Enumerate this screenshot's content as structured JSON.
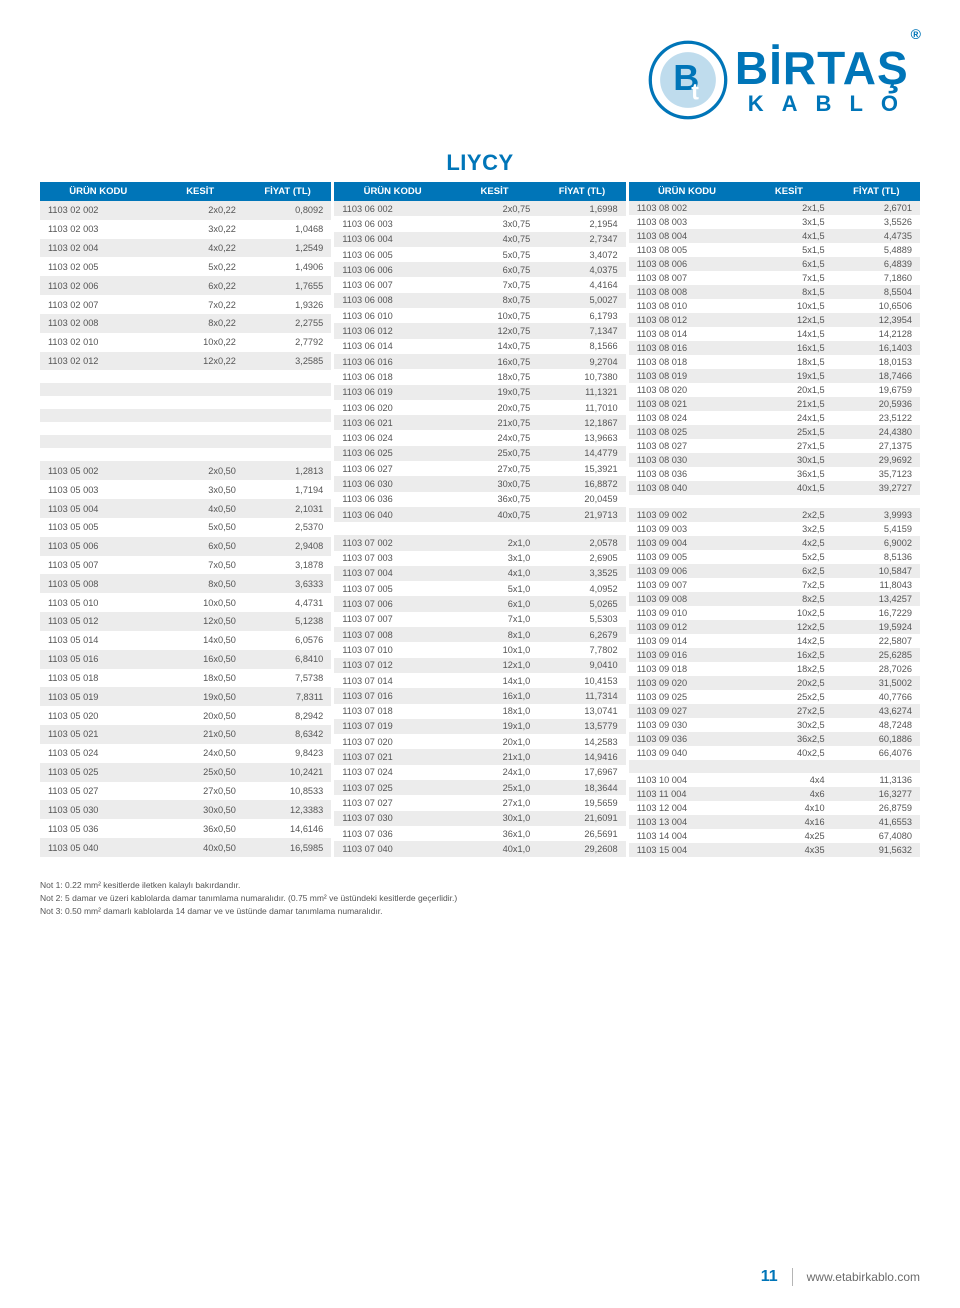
{
  "brand": {
    "name": "BİRTAŞ",
    "sub": "KABLO",
    "registered": "®"
  },
  "title": "LIYCY",
  "colors": {
    "brand_blue": "#0075b8",
    "header_bg": "#0075b8",
    "header_text": "#ffffff",
    "row_alt_bg": "#ececec",
    "row_bg": "#ffffff",
    "text": "#555555",
    "page_bg": "#ffffff"
  },
  "fonts": {
    "base_size": 9.2,
    "title_size": 22,
    "header_size": 9.5
  },
  "headers": {
    "code": "ÜRÜN KODU",
    "section": "KESİT",
    "price": "FİYAT (TL)"
  },
  "footer": {
    "page": "11",
    "url": "www.etabirkablo.com"
  },
  "notes": [
    "Not 1: 0.22 mm² kesitlerde iletken kalaylı bakırdandır.",
    "Not 2: 5 damar ve üzeri kablolarda damar tanımlama numaralıdır. (0.75 mm² ve üstündeki kesitlerde geçerlidir.)",
    "Not 3: 0.50 mm² damarlı kablolarda 14 damar ve ve üstünde damar tanımlama numaralıdır."
  ],
  "tables": [
    {
      "rows": [
        {
          "c": "1103 02 002",
          "k": "2x0,22",
          "p": "0,8092"
        },
        {
          "c": "1103 02 003",
          "k": "3x0,22",
          "p": "1,0468"
        },
        {
          "c": "1103 02 004",
          "k": "4x0,22",
          "p": "1,2549"
        },
        {
          "c": "1103 02 005",
          "k": "5x0,22",
          "p": "1,4906"
        },
        {
          "c": "1103 02 006",
          "k": "6x0,22",
          "p": "1,7655"
        },
        {
          "c": "1103 02 007",
          "k": "7x0,22",
          "p": "1,9326"
        },
        {
          "c": "1103 02 008",
          "k": "8x0,22",
          "p": "2,2755"
        },
        {
          "c": "1103 02 010",
          "k": "10x0,22",
          "p": "2,7792"
        },
        {
          "c": "1103 02 012",
          "k": "12x0,22",
          "p": "3,2585"
        },
        {
          "empty": true
        },
        {
          "empty": true
        },
        {
          "empty": true
        },
        {
          "empty": true
        },
        {
          "empty": true
        },
        {
          "empty": true
        },
        {
          "empty": true
        },
        {
          "c": "1103 05 002",
          "k": "2x0,50",
          "p": "1,2813"
        },
        {
          "c": "1103 05 003",
          "k": "3x0,50",
          "p": "1,7194"
        },
        {
          "c": "1103 05 004",
          "k": "4x0,50",
          "p": "2,1031"
        },
        {
          "c": "1103 05 005",
          "k": "5x0,50",
          "p": "2,5370"
        },
        {
          "c": "1103 05 006",
          "k": "6x0,50",
          "p": "2,9408"
        },
        {
          "c": "1103 05 007",
          "k": "7x0,50",
          "p": "3,1878"
        },
        {
          "c": "1103 05 008",
          "k": "8x0,50",
          "p": "3,6333"
        },
        {
          "c": "1103 05 010",
          "k": "10x0,50",
          "p": "4,4731"
        },
        {
          "c": "1103 05 012",
          "k": "12x0,50",
          "p": "5,1238"
        },
        {
          "c": "1103 05 014",
          "k": "14x0,50",
          "p": "6,0576"
        },
        {
          "c": "1103 05 016",
          "k": "16x0,50",
          "p": "6,8410"
        },
        {
          "c": "1103 05 018",
          "k": "18x0,50",
          "p": "7,5738"
        },
        {
          "c": "1103 05 019",
          "k": "19x0,50",
          "p": "7,8311"
        },
        {
          "c": "1103 05 020",
          "k": "20x0,50",
          "p": "8,2942"
        },
        {
          "c": "1103 05 021",
          "k": "21x0,50",
          "p": "8,6342"
        },
        {
          "c": "1103 05 024",
          "k": "24x0,50",
          "p": "9,8423"
        },
        {
          "c": "1103 05 025",
          "k": "25x0,50",
          "p": "10,2421"
        },
        {
          "c": "1103 05 027",
          "k": "27x0,50",
          "p": "10,8533"
        },
        {
          "c": "1103 05 030",
          "k": "30x0,50",
          "p": "12,3383"
        },
        {
          "c": "1103 05 036",
          "k": "36x0,50",
          "p": "14,6146"
        },
        {
          "c": "1103 05 040",
          "k": "40x0,50",
          "p": "16,5985"
        }
      ]
    },
    {
      "rows": [
        {
          "c": "1103 06 002",
          "k": "2x0,75",
          "p": "1,6998"
        },
        {
          "c": "1103 06 003",
          "k": "3x0,75",
          "p": "2,1954"
        },
        {
          "c": "1103 06 004",
          "k": "4x0,75",
          "p": "2,7347"
        },
        {
          "c": "1103 06 005",
          "k": "5x0,75",
          "p": "3,4072"
        },
        {
          "c": "1103 06 006",
          "k": "6x0,75",
          "p": "4,0375"
        },
        {
          "c": "1103 06 007",
          "k": "7x0,75",
          "p": "4,4164"
        },
        {
          "c": "1103 06 008",
          "k": "8x0,75",
          "p": "5,0027"
        },
        {
          "c": "1103 06 010",
          "k": "10x0,75",
          "p": "6,1793"
        },
        {
          "c": "1103 06 012",
          "k": "12x0,75",
          "p": "7,1347"
        },
        {
          "c": "1103 06 014",
          "k": "14x0,75",
          "p": "8,1566"
        },
        {
          "c": "1103 06 016",
          "k": "16x0,75",
          "p": "9,2704"
        },
        {
          "c": "1103 06 018",
          "k": "18x0,75",
          "p": "10,7380"
        },
        {
          "c": "1103 06 019",
          "k": "19x0,75",
          "p": "11,1321"
        },
        {
          "c": "1103 06 020",
          "k": "20x0,75",
          "p": "11,7010"
        },
        {
          "c": "1103 06 021",
          "k": "21x0,75",
          "p": "12,1867"
        },
        {
          "c": "1103 06 024",
          "k": "24x0,75",
          "p": "13,9663"
        },
        {
          "c": "1103 06 025",
          "k": "25x0,75",
          "p": "14,4779"
        },
        {
          "c": "1103 06 027",
          "k": "27x0,75",
          "p": "15,3921"
        },
        {
          "c": "1103 06 030",
          "k": "30x0,75",
          "p": "16,8872"
        },
        {
          "c": "1103 06 036",
          "k": "36x0,75",
          "p": "20,0459"
        },
        {
          "c": "1103 06 040",
          "k": "40x0,75",
          "p": "21,9713"
        },
        {
          "empty": true
        },
        {
          "c": "1103 07 002",
          "k": "2x1,0",
          "p": "2,0578"
        },
        {
          "c": "1103 07 003",
          "k": "3x1,0",
          "p": "2,6905"
        },
        {
          "c": "1103 07 004",
          "k": "4x1,0",
          "p": "3,3525"
        },
        {
          "c": "1103 07 005",
          "k": "5x1,0",
          "p": "4,0952"
        },
        {
          "c": "1103 07 006",
          "k": "6x1,0",
          "p": "5,0265"
        },
        {
          "c": "1103 07 007",
          "k": "7x1,0",
          "p": "5,5303"
        },
        {
          "c": "1103 07 008",
          "k": "8x1,0",
          "p": "6,2679"
        },
        {
          "c": "1103 07 010",
          "k": "10x1,0",
          "p": "7,7802"
        },
        {
          "c": "1103 07 012",
          "k": "12x1,0",
          "p": "9,0410"
        },
        {
          "c": "1103 07 014",
          "k": "14x1,0",
          "p": "10,4153"
        },
        {
          "c": "1103 07 016",
          "k": "16x1,0",
          "p": "11,7314"
        },
        {
          "c": "1103 07 018",
          "k": "18x1,0",
          "p": "13,0741"
        },
        {
          "c": "1103 07 019",
          "k": "19x1,0",
          "p": "13,5779"
        },
        {
          "c": "1103 07 020",
          "k": "20x1,0",
          "p": "14,2583"
        },
        {
          "c": "1103 07 021",
          "k": "21x1,0",
          "p": "14,9416"
        },
        {
          "c": "1103 07 024",
          "k": "24x1,0",
          "p": "17,6967"
        },
        {
          "c": "1103 07 025",
          "k": "25x1,0",
          "p": "18,3644"
        },
        {
          "c": "1103 07 027",
          "k": "27x1,0",
          "p": "19,5659"
        },
        {
          "c": "1103 07 030",
          "k": "30x1,0",
          "p": "21,6091"
        },
        {
          "c": "1103 07 036",
          "k": "36x1,0",
          "p": "26,5691"
        },
        {
          "c": "1103 07 040",
          "k": "40x1,0",
          "p": "29,2608"
        }
      ]
    },
    {
      "rows": [
        {
          "c": "1103 08 002",
          "k": "2x1,5",
          "p": "2,6701"
        },
        {
          "c": "1103 08 003",
          "k": "3x1,5",
          "p": "3,5526"
        },
        {
          "c": "1103 08 004",
          "k": "4x1,5",
          "p": "4,4735"
        },
        {
          "c": "1103 08 005",
          "k": "5x1,5",
          "p": "5,4889"
        },
        {
          "c": "1103 08 006",
          "k": "6x1,5",
          "p": "6,4839"
        },
        {
          "c": "1103 08 007",
          "k": "7x1,5",
          "p": "7,1860"
        },
        {
          "c": "1103 08 008",
          "k": "8x1,5",
          "p": "8,5504"
        },
        {
          "c": "1103 08 010",
          "k": "10x1,5",
          "p": "10,6506"
        },
        {
          "c": "1103 08 012",
          "k": "12x1,5",
          "p": "12,3954"
        },
        {
          "c": "1103 08 014",
          "k": "14x1,5",
          "p": "14,2128"
        },
        {
          "c": "1103 08 016",
          "k": "16x1,5",
          "p": "16,1403"
        },
        {
          "c": "1103 08 018",
          "k": "18x1,5",
          "p": "18,0153"
        },
        {
          "c": "1103 08 019",
          "k": "19x1,5",
          "p": "18,7466"
        },
        {
          "c": "1103 08 020",
          "k": "20x1,5",
          "p": "19,6759"
        },
        {
          "c": "1103 08 021",
          "k": "21x1,5",
          "p": "20,5936"
        },
        {
          "c": "1103 08 024",
          "k": "24x1,5",
          "p": "23,5122"
        },
        {
          "c": "1103 08 025",
          "k": "25x1,5",
          "p": "24,4380"
        },
        {
          "c": "1103 08 027",
          "k": "27x1,5",
          "p": "27,1375"
        },
        {
          "c": "1103 08 030",
          "k": "30x1,5",
          "p": "29,9692"
        },
        {
          "c": "1103 08 036",
          "k": "36x1,5",
          "p": "35,7123"
        },
        {
          "c": "1103 08 040",
          "k": "40x1,5",
          "p": "39,2727"
        },
        {
          "empty": true
        },
        {
          "c": "1103 09 002",
          "k": "2x2,5",
          "p": "3,9993"
        },
        {
          "c": "1103 09 003",
          "k": "3x2,5",
          "p": "5,4159"
        },
        {
          "c": "1103 09 004",
          "k": "4x2,5",
          "p": "6,9002"
        },
        {
          "c": "1103 09 005",
          "k": "5x2,5",
          "p": "8,5136"
        },
        {
          "c": "1103 09 006",
          "k": "6x2,5",
          "p": "10,5847"
        },
        {
          "c": "1103 09 007",
          "k": "7x2,5",
          "p": "11,8043"
        },
        {
          "c": "1103 09 008",
          "k": "8x2,5",
          "p": "13,4257"
        },
        {
          "c": "1103 09 010",
          "k": "10x2,5",
          "p": "16,7229"
        },
        {
          "c": "1103 09 012",
          "k": "12x2,5",
          "p": "19,5924"
        },
        {
          "c": "1103 09 014",
          "k": "14x2,5",
          "p": "22,5807"
        },
        {
          "c": "1103 09 016",
          "k": "16x2,5",
          "p": "25,6285"
        },
        {
          "c": "1103 09 018",
          "k": "18x2,5",
          "p": "28,7026"
        },
        {
          "c": "1103 09 020",
          "k": "20x2,5",
          "p": "31,5002"
        },
        {
          "c": "1103 09 025",
          "k": "25x2,5",
          "p": "40,7766"
        },
        {
          "c": "1103 09 027",
          "k": "27x2,5",
          "p": "43,6274"
        },
        {
          "c": "1103 09 030",
          "k": "30x2,5",
          "p": "48,7248"
        },
        {
          "c": "1103 09 036",
          "k": "36x2,5",
          "p": "60,1886"
        },
        {
          "c": "1103 09 040",
          "k": "40x2,5",
          "p": "66,4076"
        },
        {
          "empty": true
        },
        {
          "c": "1103 10 004",
          "k": "4x4",
          "p": "11,3136"
        },
        {
          "c": "1103 11 004",
          "k": "4x6",
          "p": "16,3277"
        },
        {
          "c": "1103 12 004",
          "k": "4x10",
          "p": "26,8759"
        },
        {
          "c": "1103 13 004",
          "k": "4x16",
          "p": "41,6553"
        },
        {
          "c": "1103 14 004",
          "k": "4x25",
          "p": "67,4080"
        },
        {
          "c": "1103 15 004",
          "k": "4x35",
          "p": "91,5632"
        }
      ]
    }
  ]
}
